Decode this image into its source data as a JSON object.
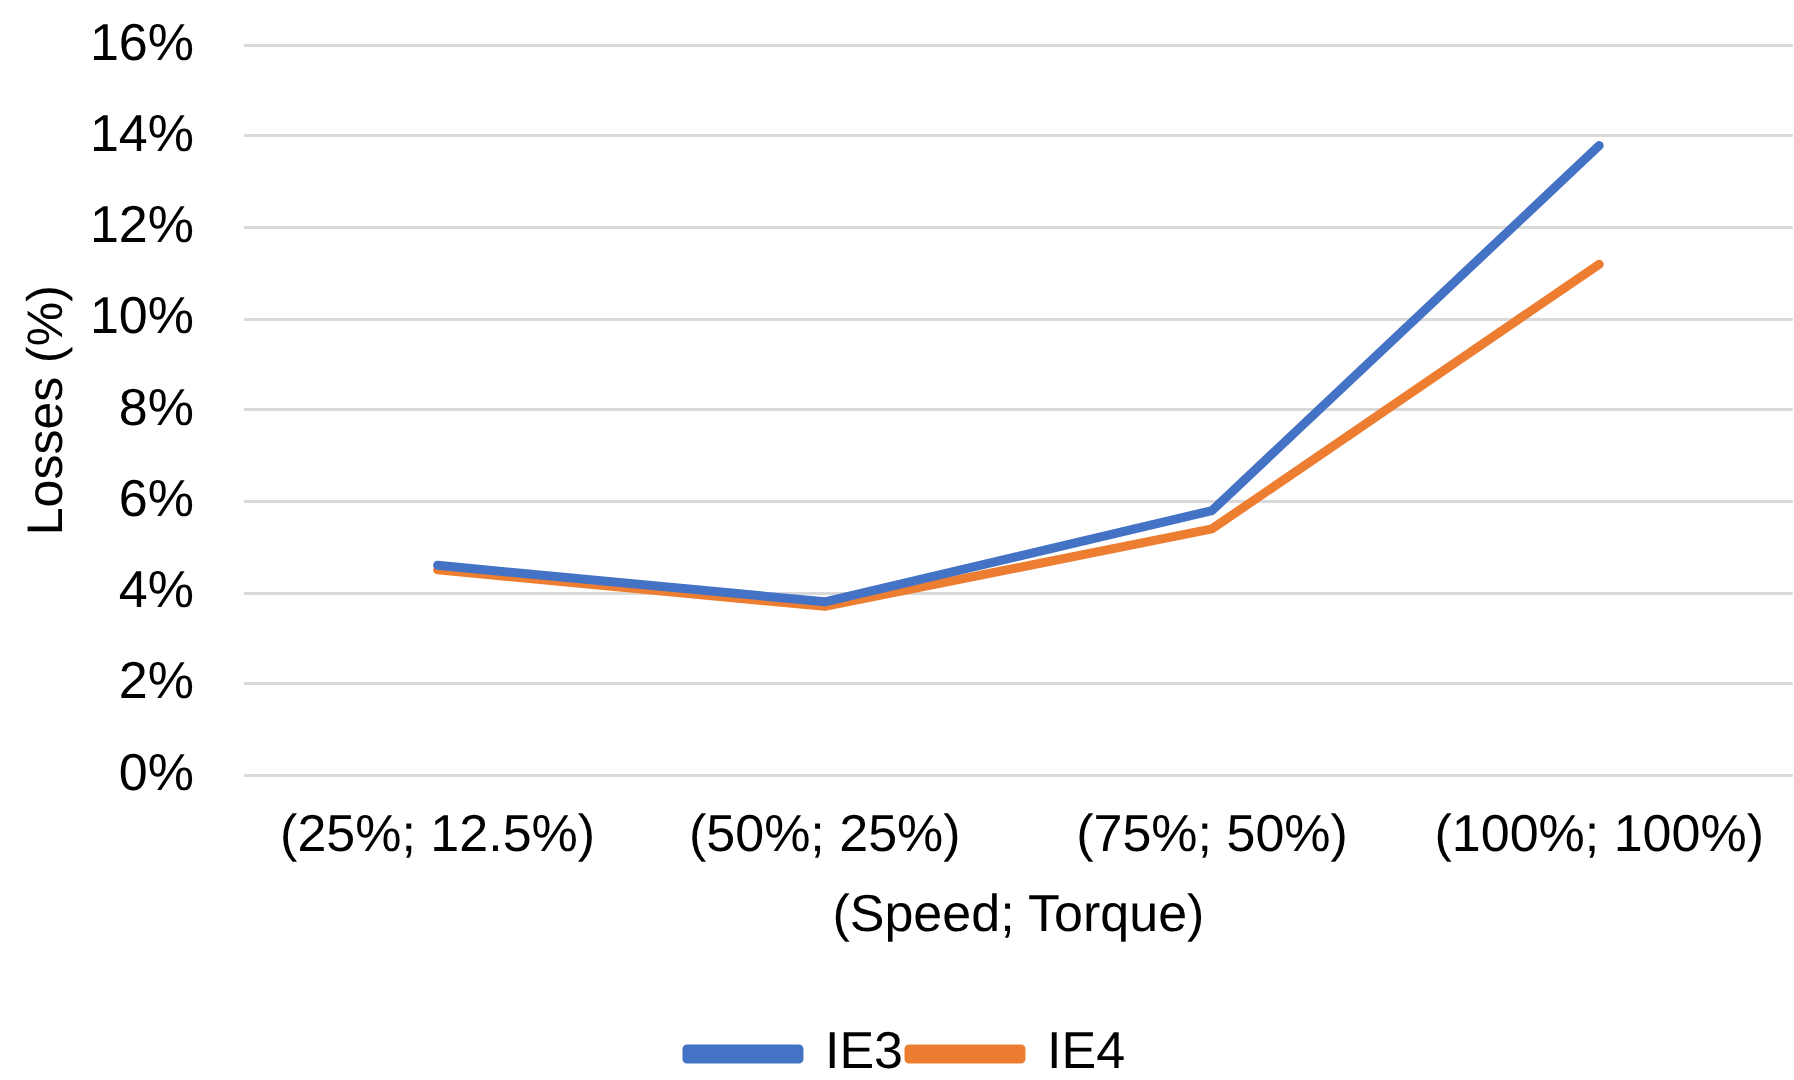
{
  "chart_data": {
    "type": "line",
    "xlabel": "(Speed; Torque)",
    "ylabel": "Losses (%)",
    "categories": [
      "(25%; 12.5%)",
      "(50%; 25%)",
      "(75%; 50%)",
      "(100%; 100%)"
    ],
    "series": [
      {
        "name": "IE3",
        "color": "#4472c4",
        "values": [
          4.6,
          3.8,
          5.8,
          13.8
        ]
      },
      {
        "name": "IE4",
        "color": "#ed7d31",
        "values": [
          4.5,
          3.7,
          5.4,
          11.2
        ]
      }
    ],
    "ylim": [
      0,
      16
    ],
    "yticks": [
      {
        "value": 0,
        "label": "0%"
      },
      {
        "value": 2,
        "label": "2%"
      },
      {
        "value": 4,
        "label": "4%"
      },
      {
        "value": 6,
        "label": "6%"
      },
      {
        "value": 8,
        "label": "8%"
      },
      {
        "value": 10,
        "label": "10%"
      },
      {
        "value": 12,
        "label": "12%"
      },
      {
        "value": 14,
        "label": "14%"
      },
      {
        "value": 16,
        "label": "16%"
      }
    ],
    "grid": "y",
    "legend": "bottom",
    "marker": "none"
  }
}
